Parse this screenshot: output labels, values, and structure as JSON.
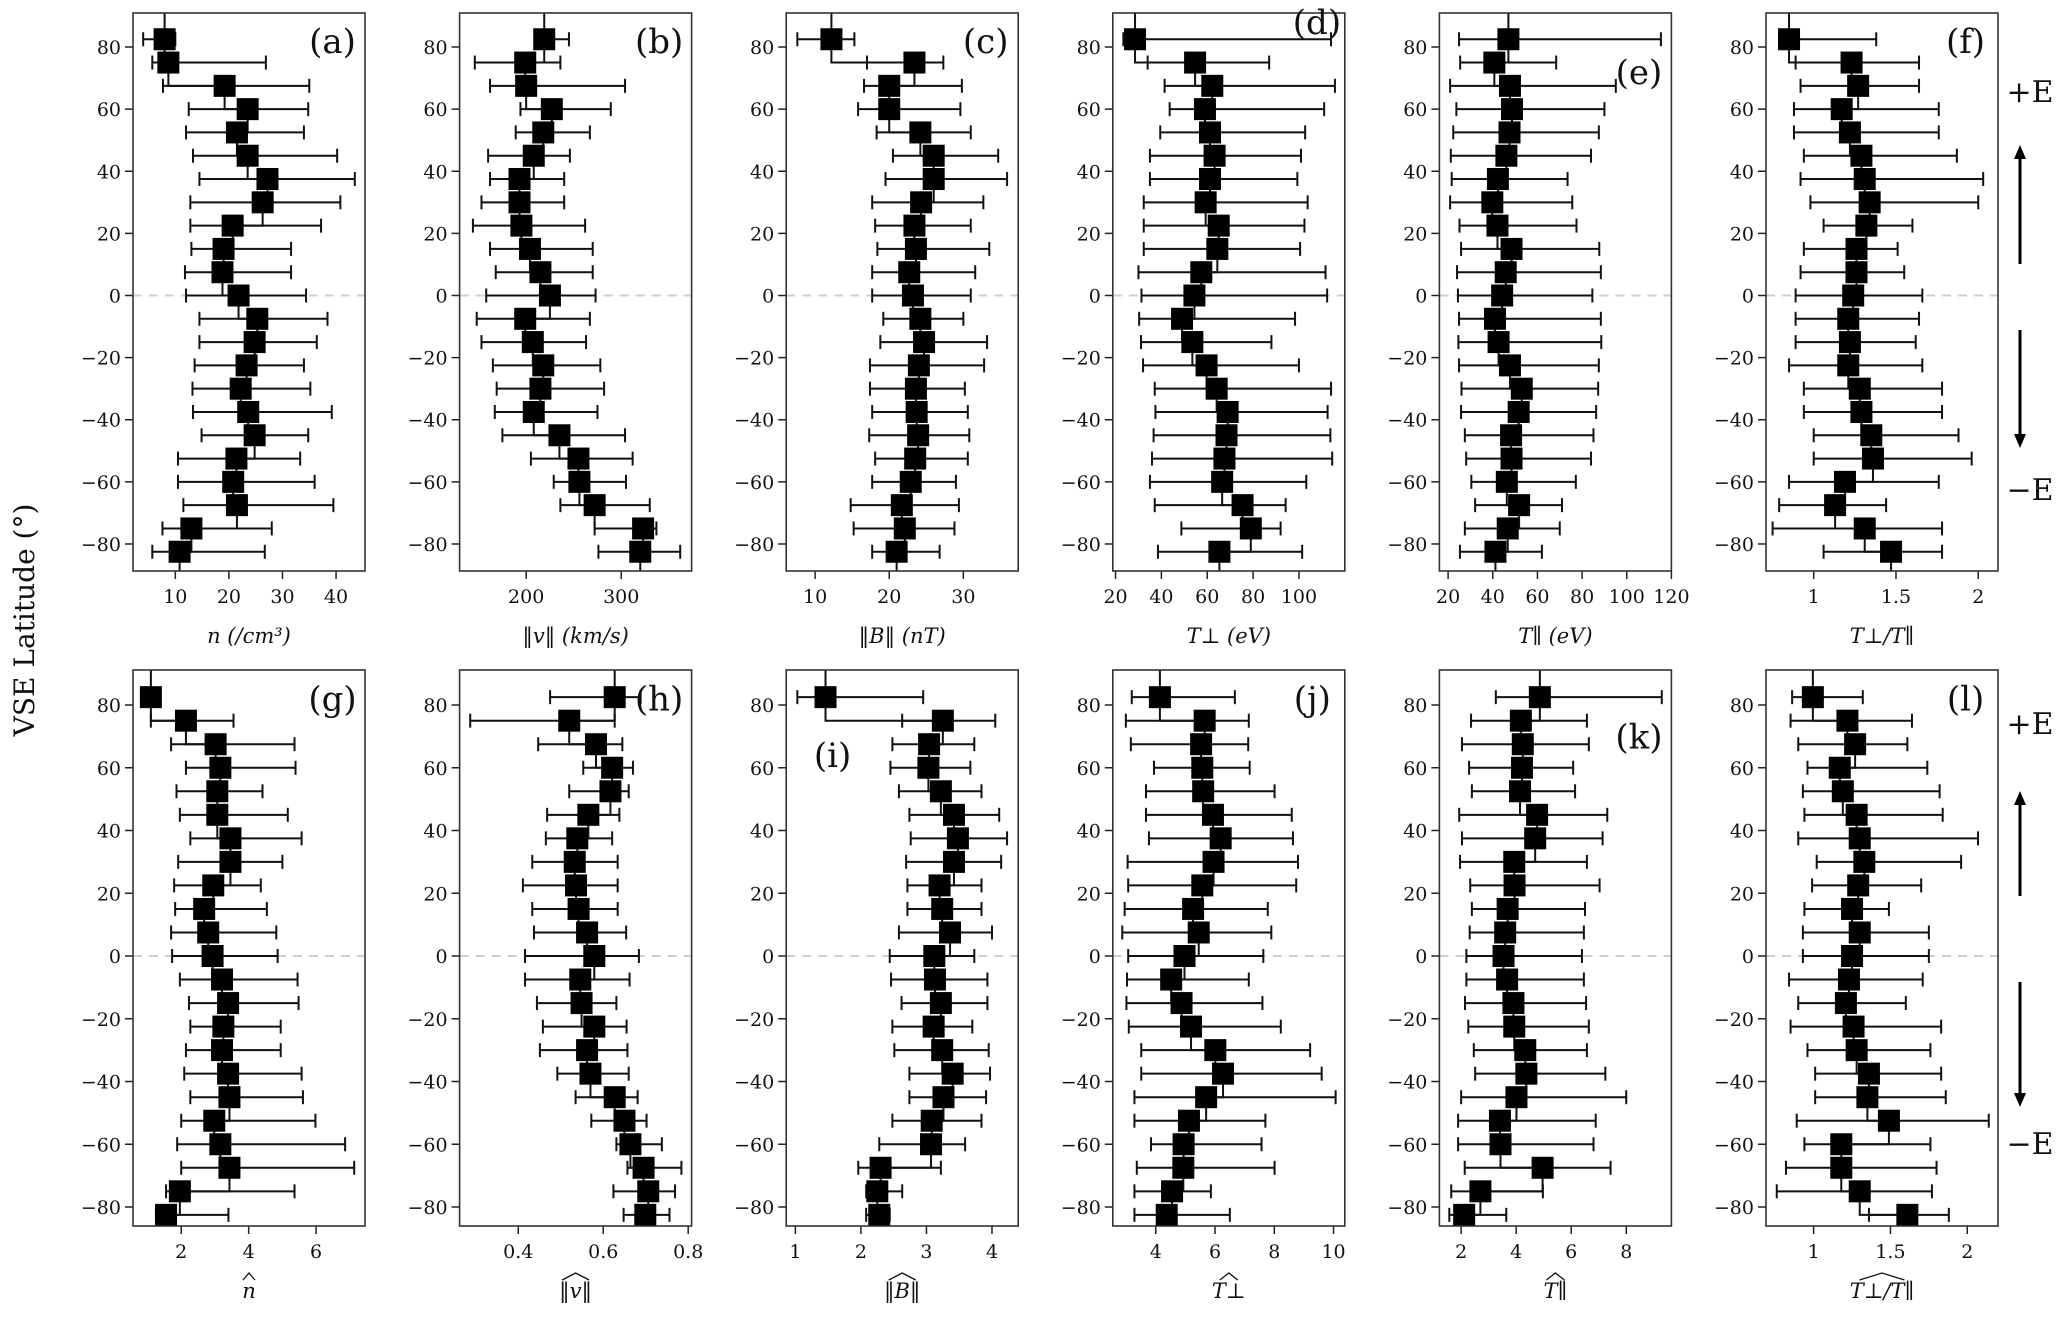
{
  "chart_data": {
    "type": "scatter",
    "ylabel": "VSE Latitude (°)",
    "ylim": [
      -90,
      90
    ],
    "yticks": [
      -80,
      -60,
      -40,
      -20,
      0,
      20,
      40,
      60,
      80
    ],
    "latitudes": [
      82.5,
      75,
      67.5,
      60,
      52.5,
      45,
      37.5,
      30,
      22.5,
      15,
      7.5,
      0,
      -7.5,
      -15,
      -22.5,
      -30,
      -37.5,
      -45,
      -52.5,
      -60,
      -67.5,
      -75,
      -82.5
    ],
    "side_labels": {
      "plus": "+E",
      "minus": "−E"
    },
    "panels": [
      {
        "letter": "(a)",
        "xlabel": "n (/cm³)",
        "hat": false,
        "xlim": [
          2.1,
          45.4
        ],
        "xticks": [
          10,
          20,
          30,
          40
        ],
        "values": [
          8.0,
          8.7,
          19.2,
          23.5,
          21.5,
          23.5,
          27.2,
          26.3,
          20.7,
          19.0,
          18.8,
          21.8,
          25.3,
          24.8,
          23.3,
          22.2,
          23.6,
          24.8,
          21.4,
          20.8,
          21.5,
          13.0,
          10.8
        ],
        "err_low": [
          4.0,
          5.7,
          7.7,
          12.5,
          12.0,
          13.3,
          14.5,
          12.8,
          12.8,
          13.0,
          11.8,
          12.0,
          14.5,
          14.5,
          13.6,
          13.2,
          13.3,
          14.9,
          10.5,
          10.5,
          11.5,
          7.6,
          5.7
        ],
        "err_high": [
          10.0,
          26.9,
          35.0,
          34.8,
          34.0,
          40.2,
          43.5,
          40.8,
          37.2,
          31.6,
          31.6,
          34.4,
          38.4,
          36.4,
          34.0,
          35.2,
          39.2,
          34.8,
          33.3,
          36.0,
          39.5,
          28.0,
          26.7
        ]
      },
      {
        "letter": "(b)",
        "xlabel": "‖v‖ (km/s)",
        "hat": false,
        "xlim": [
          130,
          374
        ],
        "xticks": [
          200,
          300
        ],
        "values": [
          219,
          199,
          200,
          227,
          218,
          208,
          193,
          193,
          195,
          204,
          215,
          225,
          199,
          207,
          218,
          215,
          208,
          235,
          255,
          256,
          272,
          323,
          320
        ],
        "err_low": [
          209,
          146,
          162,
          194,
          189,
          160,
          162,
          153,
          144,
          162,
          168,
          158,
          148,
          153,
          165,
          169,
          167,
          175,
          205,
          229,
          236,
          272,
          276
        ],
        "err_high": [
          245,
          236,
          304,
          289,
          267,
          246,
          240,
          240,
          262,
          270,
          270,
          273,
          267,
          263,
          278,
          282,
          275,
          304,
          312,
          305,
          330,
          337,
          362
        ]
      },
      {
        "letter": "(c)",
        "xlabel": "‖B‖ (nT)",
        "hat": false,
        "xlim": [
          6.1,
          37.4
        ],
        "xticks": [
          10,
          20,
          30
        ],
        "values": [
          12.2,
          23.4,
          20.0,
          20.0,
          24.2,
          26.0,
          26.0,
          24.3,
          23.4,
          23.6,
          22.7,
          23.2,
          24.2,
          24.7,
          24.0,
          23.6,
          23.7,
          23.9,
          23.5,
          22.9,
          21.7,
          22.1,
          21.0
        ],
        "err_low": [
          7.6,
          17.0,
          16.6,
          15.8,
          18.3,
          20.5,
          19.5,
          17.7,
          18.1,
          18.4,
          17.7,
          17.7,
          19.2,
          18.8,
          17.4,
          17.4,
          17.7,
          17.3,
          18.1,
          17.7,
          14.8,
          15.2,
          17.7
        ],
        "err_high": [
          15.3,
          27.3,
          29.8,
          29.6,
          31.0,
          34.7,
          35.9,
          32.7,
          31.0,
          33.5,
          31.6,
          31.0,
          30.0,
          33.2,
          32.8,
          30.2,
          30.6,
          30.8,
          30.6,
          29.0,
          29.4,
          28.8,
          26.8
        ]
      },
      {
        "letter": "(d)",
        "xlabel": "T⊥ (eV)",
        "hat": false,
        "xlim": [
          18.8,
          120
        ],
        "xticks": [
          20,
          40,
          60,
          80,
          100
        ],
        "values": [
          28.5,
          54.7,
          62.2,
          59.0,
          61.2,
          63.2,
          61.2,
          59.3,
          65.0,
          64.4,
          57.4,
          54.4,
          49.0,
          53.5,
          59.7,
          64.1,
          68.9,
          68.4,
          67.5,
          66.5,
          75.4,
          79.0,
          65.3
        ],
        "err_low": [
          23.4,
          34.0,
          41.4,
          43.6,
          39.5,
          35.0,
          35.0,
          32.3,
          32.3,
          32.3,
          30.0,
          31.3,
          30.3,
          31.1,
          32.0,
          37.1,
          37.4,
          36.6,
          35.9,
          35.0,
          37.1,
          48.7,
          38.5
        ],
        "err_high": [
          114,
          87,
          115.7,
          111,
          102.7,
          100.9,
          99.3,
          103.8,
          102.4,
          100.5,
          111.6,
          112.3,
          98.3,
          88,
          100,
          114,
          112.5,
          113.7,
          114.5,
          103.2,
          94.2,
          92,
          101.4
        ]
      },
      {
        "letter": "(e)",
        "xlabel": "T∥ (eV)",
        "hat": false,
        "xlim": [
          16.1,
          120
        ],
        "xticks": [
          20,
          40,
          60,
          80,
          100,
          120
        ],
        "values": [
          47.0,
          40.7,
          47.7,
          48.6,
          47.5,
          46.1,
          42.3,
          39.8,
          42.1,
          48.4,
          45.8,
          44.2,
          41.0,
          42.6,
          47.7,
          53.0,
          51.6,
          48.2,
          48.4,
          46.3,
          51.8,
          46.7,
          41.2
        ],
        "err_low": [
          24.9,
          25.4,
          20.9,
          23.7,
          22.3,
          21.2,
          21.6,
          20.9,
          25.1,
          25.8,
          24.0,
          24.4,
          24.9,
          24.6,
          24.9,
          26.0,
          25.8,
          27.5,
          28.1,
          30.4,
          32.1,
          27.5,
          25.3
        ],
        "err_high": [
          115.3,
          68.4,
          95.1,
          90.0,
          87.5,
          84.0,
          73.5,
          75.6,
          77.5,
          87.7,
          88.4,
          84.6,
          88.4,
          88.6,
          87.5,
          87.2,
          86.3,
          85.1,
          84.0,
          77.2,
          71.0,
          70.0,
          62.0
        ]
      },
      {
        "letter": "(f)",
        "xlabel": "T⊥/T∥",
        "hat": false,
        "xlim": [
          0.71,
          2.12
        ],
        "xticks": [
          1,
          1.5,
          2
        ],
        "values": [
          0.85,
          1.23,
          1.27,
          1.17,
          1.22,
          1.29,
          1.31,
          1.34,
          1.32,
          1.26,
          1.26,
          1.24,
          1.21,
          1.22,
          1.21,
          1.28,
          1.29,
          1.35,
          1.36,
          1.19,
          1.13,
          1.31,
          1.47
        ],
        "err_low": [
          0.79,
          0.89,
          0.92,
          0.88,
          0.88,
          0.94,
          0.92,
          0.98,
          1.06,
          0.94,
          0.92,
          0.89,
          0.89,
          0.89,
          0.85,
          0.94,
          0.94,
          1.0,
          1.0,
          0.85,
          0.79,
          0.75,
          1.06
        ],
        "err_high": [
          1.38,
          1.64,
          1.64,
          1.76,
          1.76,
          1.87,
          2.03,
          2.0,
          1.6,
          1.51,
          1.55,
          1.66,
          1.64,
          1.62,
          1.66,
          1.78,
          1.78,
          1.88,
          1.96,
          1.76,
          1.44,
          1.78,
          1.78
        ]
      },
      {
        "letter": "(g)",
        "xlabel": "n",
        "hat": true,
        "xlim": [
          0.57,
          7.45
        ],
        "xticks": [
          2,
          4,
          6
        ],
        "values": [
          1.1,
          2.14,
          3.02,
          3.16,
          3.07,
          3.07,
          3.46,
          3.46,
          2.95,
          2.68,
          2.8,
          2.93,
          3.21,
          3.39,
          3.25,
          3.21,
          3.39,
          3.43,
          2.98,
          3.16,
          3.43,
          1.96,
          1.55
        ],
        "err_low": [
          0.95,
          1.1,
          1.7,
          2.14,
          1.86,
          1.96,
          2.27,
          1.91,
          1.79,
          1.82,
          1.7,
          1.73,
          1.96,
          2.23,
          2.27,
          2.14,
          2.09,
          2.27,
          2.0,
          1.88,
          2.0,
          1.55,
          1.25
        ],
        "err_high": [
          1.3,
          3.55,
          5.36,
          5.39,
          4.41,
          5.16,
          5.57,
          5.0,
          4.36,
          4.54,
          4.82,
          4.86,
          5.45,
          5.48,
          4.95,
          4.95,
          5.57,
          5.61,
          5.98,
          6.86,
          7.13,
          5.36,
          3.4
        ]
      },
      {
        "letter": "(h)",
        "xlabel": "‖v‖",
        "hat": true,
        "xlim": [
          0.262,
          0.808
        ],
        "xticks": [
          0.4,
          0.6,
          0.8
        ],
        "values": [
          0.627,
          0.52,
          0.583,
          0.621,
          0.617,
          0.565,
          0.539,
          0.533,
          0.536,
          0.542,
          0.562,
          0.579,
          0.546,
          0.549,
          0.579,
          0.562,
          0.57,
          0.627,
          0.65,
          0.664,
          0.695,
          0.706,
          0.699
        ],
        "err_low": [
          0.475,
          0.287,
          0.447,
          0.553,
          0.52,
          0.468,
          0.465,
          0.433,
          0.411,
          0.433,
          0.437,
          0.416,
          0.416,
          0.444,
          0.458,
          0.451,
          0.492,
          0.535,
          0.572,
          0.631,
          0.657,
          0.624,
          0.648
        ],
        "err_high": [
          0.688,
          0.627,
          0.645,
          0.67,
          0.66,
          0.638,
          0.621,
          0.634,
          0.634,
          0.634,
          0.654,
          0.684,
          0.662,
          0.631,
          0.655,
          0.657,
          0.66,
          0.681,
          0.702,
          0.738,
          0.784,
          0.769,
          0.756
        ]
      },
      {
        "letter": "(i)",
        "xlabel": "‖B‖",
        "hat": true,
        "xlim": [
          0.86,
          4.4
        ],
        "xticks": [
          1,
          2,
          3,
          4
        ],
        "values": [
          1.46,
          3.25,
          3.04,
          3.03,
          3.22,
          3.42,
          3.48,
          3.42,
          3.2,
          3.24,
          3.36,
          3.12,
          3.13,
          3.22,
          3.11,
          3.24,
          3.4,
          3.26,
          3.08,
          3.07,
          2.3,
          2.25,
          2.28
        ],
        "err_low": [
          1.03,
          2.63,
          2.48,
          2.45,
          2.58,
          2.74,
          2.76,
          2.69,
          2.71,
          2.71,
          2.58,
          2.44,
          2.46,
          2.62,
          2.48,
          2.51,
          2.74,
          2.74,
          2.48,
          2.28,
          1.96,
          2.08,
          2.08
        ],
        "err_high": [
          2.95,
          4.05,
          3.73,
          3.67,
          3.84,
          4.11,
          4.23,
          4.14,
          3.84,
          3.84,
          4.0,
          3.73,
          3.93,
          3.93,
          3.7,
          3.95,
          3.97,
          3.91,
          3.84,
          3.59,
          3.22,
          2.63,
          2.44
        ]
      },
      {
        "letter": "(j)",
        "xlabel": "T⊥",
        "hat": true,
        "xlim": [
          2.55,
          10.38
        ],
        "xticks": [
          4,
          6,
          8,
          10
        ],
        "values": [
          4.14,
          5.65,
          5.53,
          5.57,
          5.6,
          5.93,
          6.19,
          5.95,
          5.57,
          5.26,
          5.45,
          4.97,
          4.52,
          4.87,
          5.19,
          6.01,
          6.27,
          5.7,
          5.12,
          4.94,
          4.93,
          4.55,
          4.37
        ],
        "err_low": [
          3.19,
          2.99,
          3.16,
          3.94,
          3.67,
          3.67,
          3.77,
          3.05,
          3.07,
          2.95,
          2.87,
          3.07,
          3.03,
          3.01,
          3.09,
          3.51,
          3.51,
          3.28,
          3.28,
          3.84,
          3.36,
          3.28,
          3.28
        ],
        "err_high": [
          6.67,
          7.14,
          7.12,
          7.17,
          8.01,
          8.59,
          8.63,
          8.8,
          8.74,
          7.78,
          7.9,
          7.63,
          7.14,
          7.6,
          8.22,
          9.21,
          9.6,
          10.07,
          7.7,
          7.57,
          8.01,
          5.86,
          6.5
        ]
      },
      {
        "letter": "(k)",
        "xlabel": "T∥",
        "hat": true,
        "xlim": [
          1.21,
          9.64
        ],
        "xticks": [
          2,
          4,
          6,
          8
        ],
        "values": [
          4.86,
          4.17,
          4.24,
          4.21,
          4.14,
          4.76,
          4.69,
          3.93,
          3.94,
          3.69,
          3.6,
          3.54,
          3.67,
          3.9,
          3.93,
          4.33,
          4.37,
          4.01,
          3.41,
          3.43,
          4.96,
          2.7,
          2.11
        ],
        "err_low": [
          3.26,
          2.36,
          2.03,
          2.29,
          2.39,
          1.93,
          2.03,
          1.96,
          2.33,
          2.39,
          2.31,
          2.19,
          2.19,
          2.14,
          2.26,
          2.46,
          2.51,
          2.0,
          1.89,
          1.89,
          2.13,
          1.64,
          1.57
        ],
        "err_high": [
          9.29,
          6.57,
          6.64,
          6.07,
          6.14,
          7.31,
          7.14,
          6.57,
          7.03,
          6.5,
          6.46,
          6.39,
          6.46,
          6.54,
          6.64,
          6.57,
          7.24,
          8.0,
          6.89,
          6.81,
          7.43,
          4.97,
          3.64
        ]
      },
      {
        "letter": "(l)",
        "xlabel": "T⊥/T∥",
        "hat": true,
        "xlim": [
          0.69,
          2.2
        ],
        "xticks": [
          1,
          1.5,
          2
        ],
        "values": [
          0.995,
          1.22,
          1.27,
          1.17,
          1.19,
          1.28,
          1.3,
          1.33,
          1.29,
          1.25,
          1.3,
          1.25,
          1.23,
          1.21,
          1.26,
          1.28,
          1.36,
          1.35,
          1.49,
          1.18,
          1.18,
          1.3,
          1.61
        ],
        "err_low": [
          0.86,
          0.85,
          0.9,
          0.96,
          0.93,
          0.94,
          0.9,
          1.02,
          0.99,
          0.94,
          0.93,
          0.93,
          0.84,
          0.9,
          0.85,
          0.96,
          1.01,
          1.01,
          0.89,
          0.94,
          0.82,
          0.76,
          1.36
        ],
        "err_high": [
          1.32,
          1.64,
          1.61,
          1.74,
          1.82,
          1.84,
          2.07,
          1.96,
          1.7,
          1.49,
          1.75,
          1.75,
          1.71,
          1.6,
          1.83,
          1.76,
          1.83,
          1.86,
          2.14,
          1.76,
          1.8,
          1.77,
          1.88
        ]
      }
    ]
  }
}
